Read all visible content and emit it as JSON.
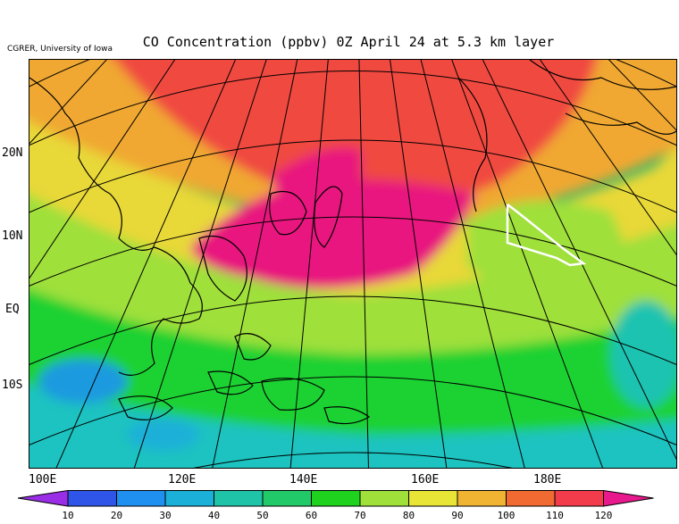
{
  "header": {
    "credit": "CGRER, University of Iowa",
    "title": "CO Concentration (ppbv) 0Z April 24 at 5.3 km layer"
  },
  "map": {
    "lat_labels": [
      "20N",
      "10N",
      "EQ",
      "10S"
    ],
    "lon_labels": [
      "100E",
      "120E",
      "140E",
      "160E",
      "180E"
    ],
    "overlay_track_color": "#ffffff"
  },
  "colorbar": {
    "labels": [
      "10",
      "20",
      "30",
      "40",
      "50",
      "60",
      "70",
      "80",
      "90",
      "100",
      "110",
      "120"
    ],
    "colors": [
      "#9a2ee6",
      "#2f55e8",
      "#1f8ff0",
      "#1ab0d8",
      "#1fc3a8",
      "#22c968",
      "#1ed21e",
      "#9fe03a",
      "#e8e536",
      "#f0b432",
      "#f06a32",
      "#f23c4c",
      "#e8198c"
    ]
  }
}
